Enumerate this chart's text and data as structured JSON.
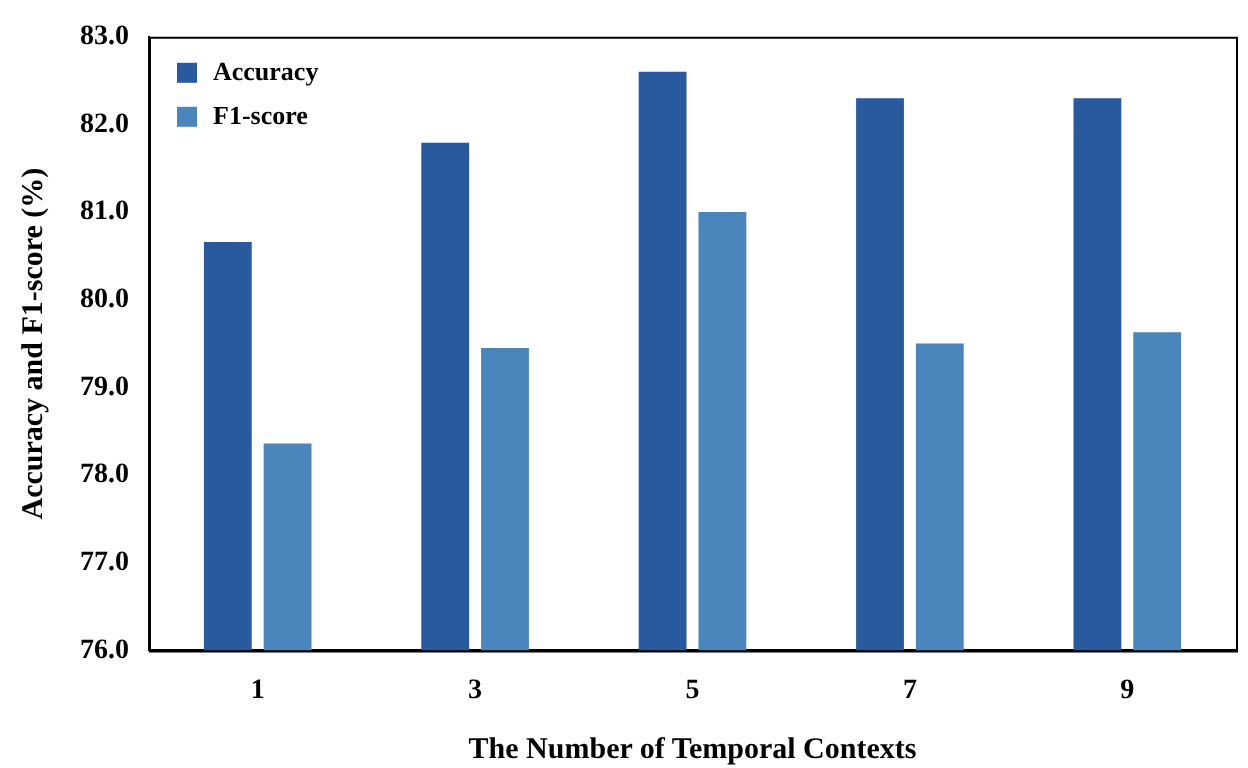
{
  "chart_data": {
    "type": "bar",
    "xlabel": "The Number of Temporal Contexts",
    "ylabel": "Accuracy and F1-score (%)",
    "categories": [
      "1",
      "3",
      "5",
      "7",
      "9"
    ],
    "series": [
      {
        "name": "Accuracy",
        "color": "#2a5a9e",
        "values": [
          80.66,
          81.79,
          82.6,
          82.3,
          82.3
        ]
      },
      {
        "name": "F1-score",
        "color": "#4a86bb",
        "values": [
          78.36,
          79.45,
          81.0,
          79.5,
          79.63
        ]
      }
    ],
    "ylim": [
      76,
      83
    ],
    "yticks": [
      {
        "value": 76,
        "label": "76.0"
      },
      {
        "value": 77,
        "label": "77.0"
      },
      {
        "value": 78,
        "label": "78.0"
      },
      {
        "value": 79,
        "label": "79.0"
      },
      {
        "value": 80,
        "label": "80.0"
      },
      {
        "value": 81,
        "label": "81.0"
      },
      {
        "value": 82,
        "label": "82.0"
      },
      {
        "value": 83,
        "label": "83.0"
      }
    ],
    "grid": false,
    "legend": "top left"
  }
}
